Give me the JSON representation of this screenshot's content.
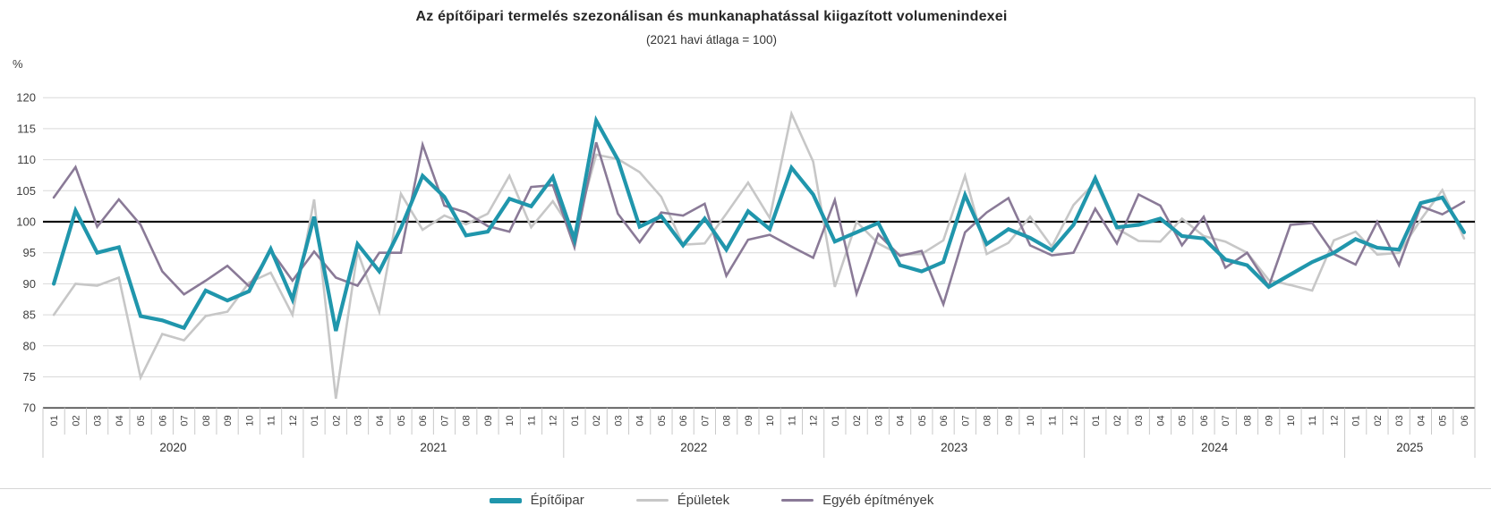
{
  "chart_data": {
    "type": "line",
    "title": "Az építőipari termelés szezonálisan és munkanaphatással kiigazított volumenindexei",
    "subtitle": "(2021 havi átlaga = 100)",
    "ylabel": "%",
    "ylim": [
      70,
      120
    ],
    "ytick_step": 5,
    "yticks": [
      "120",
      "115",
      "110",
      "105",
      "100",
      "95",
      "90",
      "85",
      "80",
      "75",
      "70"
    ],
    "baseline": 100,
    "grid": "horizontal",
    "legend_position": "bottom-center",
    "years": [
      {
        "label": "2020",
        "months": 12
      },
      {
        "label": "2021",
        "months": 12
      },
      {
        "label": "2022",
        "months": 12
      },
      {
        "label": "2023",
        "months": 12
      },
      {
        "label": "2024",
        "months": 12
      },
      {
        "label": "2025",
        "months": 6
      }
    ],
    "x_months": [
      "01",
      "02",
      "03",
      "04",
      "05",
      "06",
      "07",
      "08",
      "09",
      "10",
      "11",
      "12",
      "01",
      "02",
      "03",
      "04",
      "05",
      "06",
      "07",
      "08",
      "09",
      "10",
      "11",
      "12",
      "01",
      "02",
      "03",
      "04",
      "05",
      "06",
      "07",
      "08",
      "09",
      "10",
      "11",
      "12",
      "01",
      "02",
      "03",
      "04",
      "05",
      "06",
      "07",
      "08",
      "09",
      "10",
      "11",
      "12",
      "01",
      "02",
      "03",
      "04",
      "05",
      "06",
      "07",
      "08",
      "09",
      "10",
      "11",
      "12",
      "01",
      "02",
      "03",
      "04",
      "05",
      "06"
    ],
    "series": [
      {
        "name": "Építőipar",
        "color": "#2096AC",
        "stroke_width": 4.2,
        "values": [
          90,
          101.8,
          95,
          95.9,
          84.8,
          84.1,
          82.9,
          88.9,
          87.3,
          88.8,
          95.6,
          87.5,
          100.8,
          82.4,
          96.4,
          92,
          99,
          107.4,
          104,
          97.8,
          98.4,
          103.7,
          102.5,
          107.2,
          97.1,
          116.3,
          110,
          99.2,
          100.9,
          96.2,
          100.5,
          95.5,
          101.7,
          98.8,
          108.7,
          104.4,
          96.8,
          98.3,
          99.8,
          93,
          92,
          93.5,
          104.3,
          96.4,
          98.8,
          97.4,
          95.4,
          99.5,
          107,
          99.1,
          99.5,
          100.5,
          97.7,
          97.3,
          93.9,
          93,
          89.5,
          91.5,
          93.5,
          95,
          97.2,
          95.8,
          95.5,
          103,
          103.9,
          98.3
        ]
      },
      {
        "name": "Épületek",
        "color": "#C7C7C7",
        "stroke_width": 2.6,
        "values": [
          85,
          90,
          89.7,
          91,
          74.9,
          81.9,
          80.9,
          84.8,
          85.5,
          90.2,
          91.8,
          85,
          103.6,
          71.5,
          95.2,
          85.5,
          104.5,
          98.7,
          101,
          99.6,
          101.3,
          107.4,
          99.1,
          103.3,
          98,
          110.8,
          110.1,
          108,
          104,
          96.3,
          96.5,
          101.3,
          106.3,
          100.6,
          117.4,
          109.7,
          89.5,
          100,
          96.5,
          94.7,
          94.8,
          97,
          107.4,
          94.8,
          96.6,
          100.8,
          96,
          102.7,
          106.4,
          98.9,
          96.9,
          96.8,
          100.5,
          97.7,
          96.8,
          95,
          90.6,
          89.8,
          88.9,
          97,
          98.4,
          94.7,
          95,
          100.3,
          105.1,
          97.3
        ]
      },
      {
        "name": "Egyéb építmények",
        "color": "#8A7A97",
        "stroke_width": 2.6,
        "values": [
          103.9,
          108.8,
          99.2,
          103.6,
          99.5,
          92,
          88.3,
          90.5,
          92.9,
          89.6,
          95.4,
          90.5,
          95.2,
          91,
          89.7,
          95,
          95,
          112.4,
          102.6,
          101.5,
          99.3,
          98.4,
          105.6,
          105.9,
          95.9,
          112.8,
          101.3,
          96.7,
          101.5,
          101,
          102.9,
          91.3,
          97.1,
          97.9,
          96,
          94.2,
          103.5,
          88.4,
          98,
          94.5,
          95.3,
          86.7,
          98.3,
          101.5,
          103.8,
          96.2,
          94.6,
          95,
          102.1,
          96.5,
          104.4,
          102.6,
          96.2,
          100.8,
          92.6,
          95,
          89.6,
          99.5,
          99.8,
          94.8,
          93.1,
          100,
          93,
          102.5,
          101.2,
          103.2
        ]
      }
    ],
    "colors": {
      "gridline": "#d9d9d9",
      "baseline": "#111111",
      "axis_bottom": "#4a4a4a",
      "tick_text": "#404040",
      "separator": "#c9c9c9"
    }
  }
}
